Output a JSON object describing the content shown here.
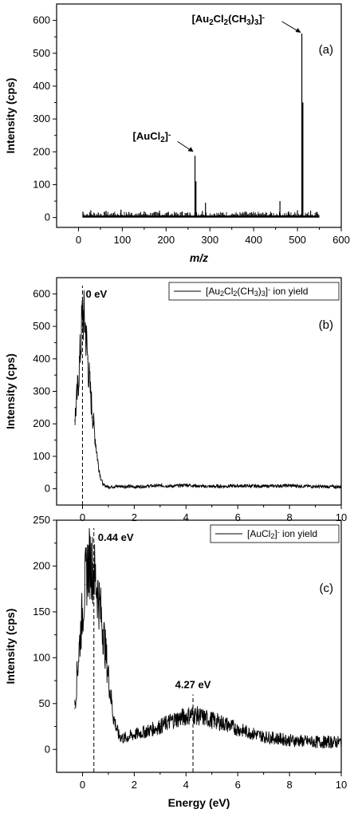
{
  "chart_data": [
    {
      "type": "bar",
      "panel": "(a)",
      "title": "",
      "xlabel": "m/z",
      "ylabel": "Intensity (cps)",
      "xlim": [
        -50,
        600
      ],
      "ylim": [
        -30,
        650
      ],
      "xticks": [
        0,
        100,
        200,
        300,
        400,
        500,
        600
      ],
      "yticks": [
        0,
        100,
        200,
        300,
        400,
        500,
        600
      ],
      "baseline_range": [
        10,
        550
      ],
      "x": [
        10,
        28,
        45,
        63,
        80,
        97,
        115,
        132,
        150,
        168,
        185,
        203,
        220,
        237,
        255,
        266,
        283,
        290,
        310,
        330,
        350,
        380,
        410,
        440,
        460,
        480,
        500,
        510,
        530,
        545
      ],
      "values": [
        18,
        22,
        15,
        20,
        14,
        24,
        17,
        12,
        19,
        13,
        21,
        16,
        14,
        18,
        12,
        188,
        20,
        45,
        12,
        15,
        10,
        18,
        11,
        13,
        50,
        18,
        22,
        560,
        21,
        17
      ],
      "annotations": [
        {
          "label_parts": [
            [
              "[AuCl",
              "n"
            ],
            [
              "2",
              "sub"
            ],
            [
              "]",
              "n"
            ],
            [
              "-",
              "sup"
            ]
          ],
          "x": 266,
          "y": 188
        },
        {
          "label_parts": [
            [
              "[Au",
              "n"
            ],
            [
              "2",
              "sub"
            ],
            [
              "Cl",
              "n"
            ],
            [
              "2",
              "sub"
            ],
            [
              "(CH",
              "n"
            ],
            [
              "3",
              "sub"
            ],
            [
              ")",
              "n"
            ],
            [
              "3",
              "sub"
            ],
            [
              "]",
              "n"
            ],
            [
              "-",
              "sup"
            ]
          ],
          "x": 510,
          "y": 560
        }
      ]
    },
    {
      "type": "line",
      "panel": "(b)",
      "title": "",
      "xlabel": "",
      "ylabel": "Intensity (cps)",
      "xlim": [
        -1,
        10
      ],
      "ylim": [
        -50,
        650
      ],
      "xticks": [
        0,
        2,
        4,
        6,
        8,
        10
      ],
      "yticks": [
        0,
        100,
        200,
        300,
        400,
        500,
        600
      ],
      "series": [
        {
          "name_parts": [
            [
              "[Au",
              "n"
            ],
            [
              "2",
              "sub"
            ],
            [
              "Cl",
              "n"
            ],
            [
              "2",
              "sub"
            ],
            [
              "(CH",
              "n"
            ],
            [
              "3",
              "sub"
            ],
            [
              ")",
              "n"
            ],
            [
              "3",
              "sub"
            ],
            [
              "]",
              "n"
            ],
            [
              "-",
              "sup"
            ],
            [
              " ion yield",
              "n"
            ]
          ],
          "x": [
            -0.3,
            -0.2,
            -0.1,
            0.0,
            0.1,
            0.2,
            0.3,
            0.4,
            0.5,
            0.6,
            0.7,
            0.8,
            1.0,
            1.5,
            2,
            3,
            3.5,
            4,
            4.5,
            5,
            6,
            7,
            8,
            9,
            10
          ],
          "values": [
            210,
            290,
            400,
            540,
            510,
            400,
            300,
            220,
            150,
            80,
            35,
            12,
            6,
            8,
            6,
            10,
            8,
            12,
            8,
            7,
            9,
            8,
            10,
            7,
            6
          ]
        }
      ],
      "annotations": [
        {
          "label": "0 eV",
          "x": 0
        }
      ]
    },
    {
      "type": "line",
      "panel": "(c)",
      "title": "",
      "xlabel": "Energy (eV)",
      "ylabel": "Intensity (cps)",
      "xlim": [
        -1,
        10
      ],
      "ylim": [
        -25,
        250
      ],
      "xticks": [
        0,
        2,
        4,
        6,
        8,
        10
      ],
      "yticks": [
        0,
        50,
        100,
        150,
        200,
        250
      ],
      "series": [
        {
          "name_parts": [
            [
              "[AuCl",
              "n"
            ],
            [
              "2",
              "sub"
            ],
            [
              "]",
              "n"
            ],
            [
              "-",
              "sup"
            ],
            [
              " ion yield",
              "n"
            ]
          ],
          "x": [
            -0.3,
            -0.2,
            -0.1,
            0.0,
            0.1,
            0.2,
            0.3,
            0.44,
            0.6,
            0.8,
            1.0,
            1.2,
            1.4,
            1.6,
            1.8,
            2.0,
            2.5,
            3.0,
            3.5,
            4.0,
            4.27,
            4.5,
            5.0,
            5.5,
            6.0,
            6.5,
            7.0,
            8.0,
            9.0,
            10.0
          ],
          "values": [
            45,
            85,
            120,
            150,
            180,
            200,
            205,
            195,
            170,
            130,
            80,
            35,
            15,
            12,
            14,
            16,
            20,
            25,
            32,
            36,
            38,
            36,
            32,
            28,
            22,
            18,
            14,
            10,
            8,
            8
          ]
        }
      ],
      "annotations": [
        {
          "label": "0.44 eV",
          "x": 0.44
        },
        {
          "label": "4.27 eV",
          "x": 4.27
        }
      ]
    }
  ]
}
